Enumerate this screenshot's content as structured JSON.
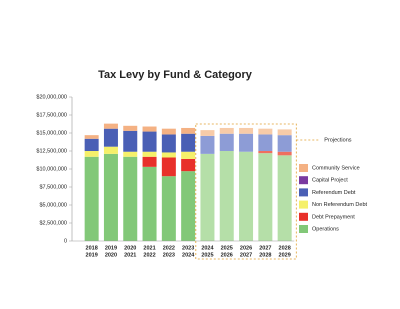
{
  "chart_data": {
    "type": "stacked_bar",
    "title": "Tax Levy by Fund & Category",
    "categories": [
      [
        "2018",
        "2019"
      ],
      [
        "2019",
        "2020"
      ],
      [
        "2020",
        "2021"
      ],
      [
        "2021",
        "2022"
      ],
      [
        "2022",
        "2023"
      ],
      [
        "2023",
        "2024"
      ],
      [
        "2024",
        "2025"
      ],
      [
        "2025",
        "2026"
      ],
      [
        "2026",
        "2027"
      ],
      [
        "2027",
        "2028"
      ],
      [
        "2028",
        "2029"
      ]
    ],
    "projected": [
      false,
      false,
      false,
      false,
      false,
      false,
      true,
      true,
      true,
      true,
      true
    ],
    "annotation": "Projections",
    "series": [
      {
        "name": "Operations",
        "color": "#82c878",
        "projection_color": "#b5dfa8",
        "values": [
          11700000,
          12100000,
          11700000,
          10300000,
          9000000,
          9700000,
          12100000,
          12500000,
          12400000,
          12200000,
          11900000
        ]
      },
      {
        "name": "Debt Prepayment",
        "color": "#e8302a",
        "projection_color": "#ef6f5f",
        "values": [
          0,
          0,
          0,
          1400000,
          2600000,
          1700000,
          0,
          0,
          0,
          300000,
          500000
        ]
      },
      {
        "name": "Non Referendum Debt",
        "color": "#f5f06a",
        "projection_color": "#f7f4a6",
        "values": [
          800000,
          1000000,
          700000,
          700000,
          700000,
          1000000,
          0,
          0,
          0,
          0,
          0
        ]
      },
      {
        "name": "Referendum Debt",
        "color": "#4a5fb5",
        "projection_color": "#8d9cd6",
        "values": [
          1700000,
          2500000,
          2900000,
          2800000,
          2500000,
          2500000,
          2500000,
          2400000,
          2500000,
          2300000,
          2300000
        ]
      },
      {
        "name": "Capital Project",
        "color": "#7a3aa0",
        "projection_color": "#a97cc4",
        "values": [
          0,
          0,
          0,
          0,
          0,
          0,
          0,
          0,
          0,
          0,
          0
        ]
      },
      {
        "name": "Community Service",
        "color": "#f4b183",
        "projection_color": "#f7cba8",
        "values": [
          500000,
          700000,
          700000,
          700000,
          800000,
          800000,
          800000,
          800000,
          800000,
          800000,
          800000
        ]
      }
    ],
    "ylim": [
      0,
      20000000
    ],
    "yticks": [
      0,
      {
        "value": 2500000,
        "label": "$2,500,000"
      },
      {
        "value": 5000000,
        "label": "$5,000,000"
      },
      {
        "value": 7500000,
        "label": "$7,500,000"
      },
      {
        "value": 10000000,
        "label": "$10,000,000"
      },
      {
        "value": 12500000,
        "label": "$12,500,000"
      },
      {
        "value": 15000000,
        "label": "$15,000,000"
      },
      {
        "value": 17500000,
        "label": "$17,500,000"
      },
      {
        "value": 20000000,
        "label": "$20,000,000"
      }
    ]
  }
}
